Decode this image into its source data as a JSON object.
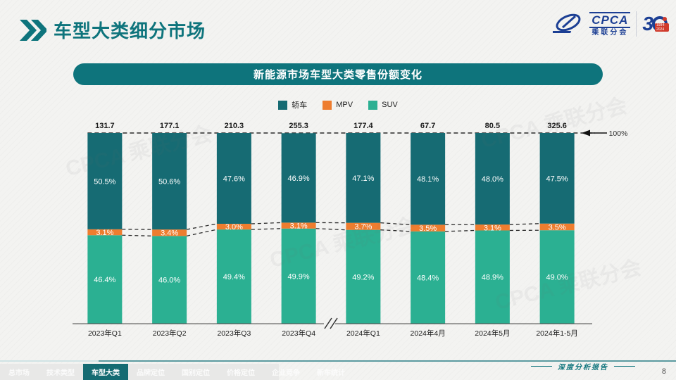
{
  "page": {
    "title": "车型大类细分市场",
    "page_number": "8",
    "footer_note": "深度分析报告",
    "watermark": "CPCA 乘联分会"
  },
  "logo": {
    "cpca": "CPCA",
    "cpca_sub": "乘联分会",
    "badge_number": "3",
    "badge_years": "1994-2024"
  },
  "tabs": [
    {
      "label": "总市场",
      "active": false
    },
    {
      "label": "技术类型",
      "active": false
    },
    {
      "label": "车型大类",
      "active": true
    },
    {
      "label": "品牌定位",
      "active": false
    },
    {
      "label": "国别定位",
      "active": false
    },
    {
      "label": "价格定位",
      "active": false
    },
    {
      "label": "企业竞争",
      "active": false
    },
    {
      "label": "新车统计",
      "active": false
    }
  ],
  "chart_data": {
    "type": "bar",
    "stacked": true,
    "percent": true,
    "title": "新能源市场车型大类零售份额变化",
    "categories": [
      "2023年Q1",
      "2023年Q2",
      "2023年Q3",
      "2023年Q4",
      "2024年Q1",
      "2024年4月",
      "2024年5月",
      "2024年1-5月"
    ],
    "totals": [
      131.7,
      177.1,
      210.3,
      255.3,
      177.4,
      67.7,
      80.5,
      325.6
    ],
    "series": [
      {
        "name": "轿车",
        "color": "#166b73",
        "values": [
          50.5,
          50.6,
          47.6,
          46.9,
          47.1,
          48.1,
          48.0,
          47.5
        ]
      },
      {
        "name": "MPV",
        "color": "#ee7d2f",
        "values": [
          3.1,
          3.4,
          3.0,
          3.1,
          3.7,
          3.5,
          3.1,
          3.5
        ]
      },
      {
        "name": "SUV",
        "color": "#2bb092",
        "values": [
          46.4,
          46.0,
          49.4,
          49.9,
          49.2,
          48.4,
          48.9,
          49.0
        ]
      }
    ],
    "axis_max_label": "100%",
    "axis_break_after_index": 3,
    "legend_position": "top",
    "ylim": [
      0,
      100
    ],
    "grid": false
  }
}
